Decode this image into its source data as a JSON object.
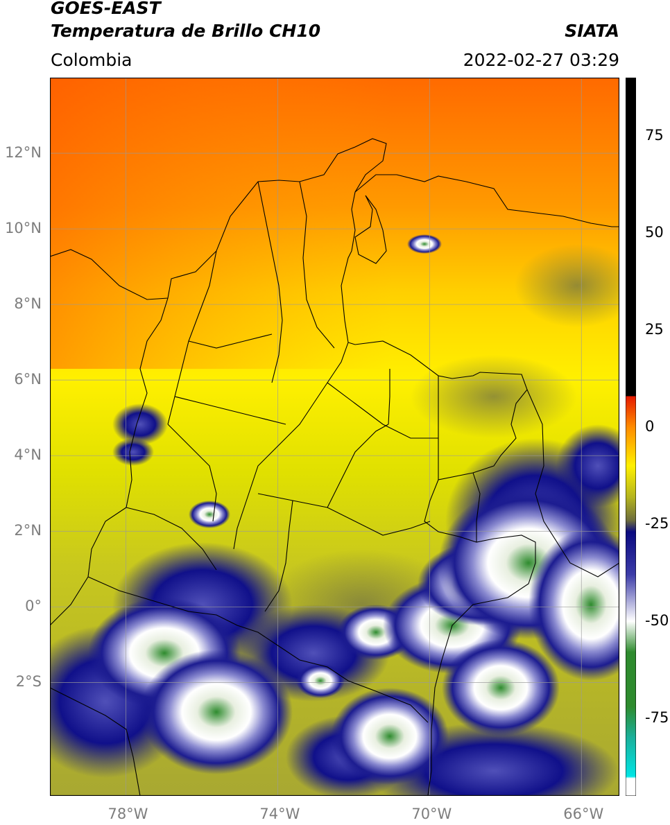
{
  "header": {
    "title_line1": "GOES-EAST",
    "title_line2": "Temperatura de Brillo CH10",
    "region": "Colombia",
    "source": "SIATA",
    "datetime": "2022-02-27 03:29"
  },
  "map": {
    "lon_range": [
      -80,
      -65
    ],
    "lat_range": [
      -5,
      14
    ],
    "lon_ticks": [
      {
        "lon": -78,
        "label": "78°W"
      },
      {
        "lon": -74,
        "label": "74°W"
      },
      {
        "lon": -70,
        "label": "70°W"
      },
      {
        "lon": -66,
        "label": "66°W"
      }
    ],
    "lat_ticks": [
      {
        "lat": 12,
        "label": "12°N"
      },
      {
        "lat": 10,
        "label": "10°N"
      },
      {
        "lat": 8,
        "label": "8°N"
      },
      {
        "lat": 6,
        "label": "6°N"
      },
      {
        "lat": 4,
        "label": "4°N"
      },
      {
        "lat": 2,
        "label": "2°N"
      },
      {
        "lat": 0,
        "label": "0°"
      },
      {
        "lat": -2,
        "label": "2°S"
      }
    ]
  },
  "colorbar": {
    "range": [
      -95,
      90
    ],
    "ticks": [
      {
        "value": 75,
        "label": "75"
      },
      {
        "value": 50,
        "label": "50"
      },
      {
        "value": 25,
        "label": "25"
      },
      {
        "value": 0,
        "label": "0"
      },
      {
        "value": -25,
        "label": "-25"
      },
      {
        "value": -50,
        "label": "-50"
      },
      {
        "value": -75,
        "label": "-75"
      }
    ],
    "colors": {
      "black": "#000000",
      "red": "#e51a00",
      "orange": "#ff8c00",
      "yellow": "#fff000",
      "olive": "#b5b51e",
      "dark_olive": "#6e6e3c",
      "navy": "#0a0a80",
      "blue": "#3c3ca8",
      "white": "#ffffff",
      "green": "#2e8b2e",
      "teal": "#1ab09b",
      "cyan": "#00e5e5"
    }
  }
}
